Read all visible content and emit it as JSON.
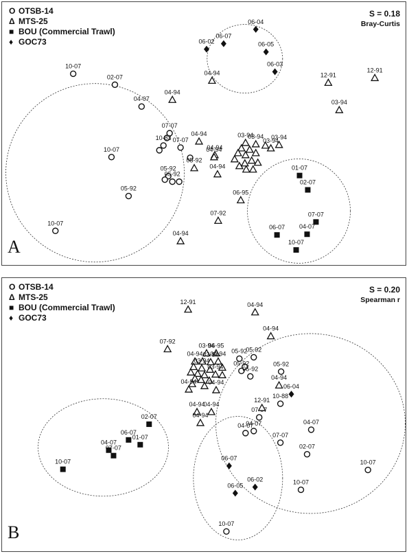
{
  "chart_data": [
    {
      "type": "scatter",
      "title": "",
      "panel_label": "A",
      "stat": "S = 0.18",
      "measure": "Bray-Curtis",
      "xlim": [
        0,
        590
      ],
      "ylim": [
        0,
        385
      ],
      "legend": [
        {
          "symbol": "O",
          "name": "OTSB-14"
        },
        {
          "symbol": "Δ",
          "name": "MTS-25"
        },
        {
          "symbol": "■",
          "name": "BOU (Commercial Trawl)"
        },
        {
          "symbol": "♦",
          "name": "GOC73"
        }
      ],
      "series": [
        {
          "name": "OTSB-14",
          "marker": "circle",
          "points": [
            {
              "x": 104,
              "y": 105,
              "label": "10-07"
            },
            {
              "x": 165,
              "y": 121,
              "label": "02-07"
            },
            {
              "x": 204,
              "y": 153,
              "label": "04-07"
            },
            {
              "x": 245,
              "y": 192,
              "label": "07-07"
            },
            {
              "x": 241,
              "y": 199,
              "label": ""
            },
            {
              "x": 236,
              "y": 210,
              "label": "10-83"
            },
            {
              "x": 230,
              "y": 217,
              "label": ""
            },
            {
              "x": 261,
              "y": 213,
              "label": "07-07"
            },
            {
              "x": 275,
              "y": 228,
              "label": ""
            },
            {
              "x": 160,
              "y": 227,
              "label": "10-07"
            },
            {
              "x": 243,
              "y": 255,
              "label": "05-92"
            },
            {
              "x": 238,
              "y": 260,
              "label": ""
            },
            {
              "x": 249,
              "y": 263,
              "label": "05-92"
            },
            {
              "x": 259,
              "y": 263,
              "label": ""
            },
            {
              "x": 185,
              "y": 284,
              "label": "05-92"
            },
            {
              "x": 78,
              "y": 335,
              "label": "10-07"
            }
          ]
        },
        {
          "name": "MTS-25",
          "marker": "triangle",
          "points": [
            {
              "x": 249,
              "y": 143,
              "label": "04-94"
            },
            {
              "x": 307,
              "y": 115,
              "label": "04-94"
            },
            {
              "x": 477,
              "y": 118,
              "label": "12-91"
            },
            {
              "x": 545,
              "y": 111,
              "label": "12-91"
            },
            {
              "x": 493,
              "y": 158,
              "label": "03-94"
            },
            {
              "x": 288,
              "y": 204,
              "label": "04-94"
            },
            {
              "x": 311,
              "y": 224,
              "label": "04-94"
            },
            {
              "x": 281,
              "y": 243,
              "label": "05-92"
            },
            {
              "x": 310,
              "y": 227,
              "label": "04-94"
            },
            {
              "x": 315,
              "y": 252,
              "label": "04-94"
            },
            {
              "x": 356,
              "y": 206,
              "label": "03-94"
            },
            {
              "x": 371,
              "y": 208,
              "label": "03-94"
            },
            {
              "x": 385,
              "y": 210,
              "label": ""
            },
            {
              "x": 405,
              "y": 209,
              "label": "03-94"
            },
            {
              "x": 350,
              "y": 214,
              "label": ""
            },
            {
              "x": 362,
              "y": 216,
              "label": ""
            },
            {
              "x": 393,
              "y": 214,
              "label": "03-94"
            },
            {
              "x": 345,
              "y": 221,
              "label": ""
            },
            {
              "x": 356,
              "y": 224,
              "label": ""
            },
            {
              "x": 371,
              "y": 221,
              "label": ""
            },
            {
              "x": 340,
              "y": 230,
              "label": ""
            },
            {
              "x": 365,
              "y": 232,
              "label": ""
            },
            {
              "x": 355,
              "y": 236,
              "label": ""
            },
            {
              "x": 374,
              "y": 235,
              "label": ""
            },
            {
              "x": 347,
              "y": 240,
              "label": ""
            },
            {
              "x": 357,
              "y": 245,
              "label": ""
            },
            {
              "x": 367,
              "y": 245,
              "label": ""
            },
            {
              "x": 349,
              "y": 290,
              "label": "06-95"
            },
            {
              "x": 316,
              "y": 320,
              "label": "07-92"
            },
            {
              "x": 261,
              "y": 350,
              "label": "04-94"
            }
          ]
        },
        {
          "name": "BOU (Commercial Trawl)",
          "marker": "square",
          "points": [
            {
              "x": 435,
              "y": 254,
              "label": "01-07"
            },
            {
              "x": 447,
              "y": 275,
              "label": "02-07"
            },
            {
              "x": 459,
              "y": 322,
              "label": "07-07"
            },
            {
              "x": 446,
              "y": 340,
              "label": "04-07"
            },
            {
              "x": 402,
              "y": 341,
              "label": "06-07"
            },
            {
              "x": 430,
              "y": 363,
              "label": "10-07"
            }
          ]
        },
        {
          "name": "GOC73",
          "marker": "diamond",
          "points": [
            {
              "x": 371,
              "y": 40,
              "label": "06-04"
            },
            {
              "x": 324,
              "y": 61,
              "label": "06-07"
            },
            {
              "x": 299,
              "y": 69,
              "label": "06-02"
            },
            {
              "x": 386,
              "y": 73,
              "label": "06-05"
            },
            {
              "x": 399,
              "y": 102,
              "label": "06-03"
            }
          ]
        }
      ],
      "ellipses": [
        {
          "cx": 136,
          "cy": 250,
          "rx": 130,
          "ry": 130
        },
        {
          "cx": 355,
          "cy": 83,
          "rx": 55,
          "ry": 50
        },
        {
          "cx": 434,
          "cy": 306,
          "rx": 75,
          "ry": 76
        }
      ]
    },
    {
      "type": "scatter",
      "title": "",
      "panel_label": "B",
      "stat": "S = 0.20",
      "measure": "Spearman r",
      "xlim": [
        0,
        590
      ],
      "ylim": [
        0,
        400
      ],
      "legend": [
        {
          "symbol": "O",
          "name": "OTSB-14"
        },
        {
          "symbol": "Δ",
          "name": "MTS-25"
        },
        {
          "symbol": "■",
          "name": "BOU (Commercial Trawl)"
        },
        {
          "symbol": "♦",
          "name": "GOC73"
        }
      ],
      "series": [
        {
          "name": "OTSB-14",
          "marker": "circle",
          "points": [
            {
              "x": 347,
              "y": 118,
              "label": "05-92"
            },
            {
              "x": 368,
              "y": 116,
              "label": "05-92"
            },
            {
              "x": 355,
              "y": 130,
              "label": ""
            },
            {
              "x": 350,
              "y": 136,
              "label": "05-92"
            },
            {
              "x": 363,
              "y": 144,
              "label": "05-92"
            },
            {
              "x": 408,
              "y": 137,
              "label": "05-92"
            },
            {
              "x": 407,
              "y": 184,
              "label": "10-88"
            },
            {
              "x": 376,
              "y": 204,
              "label": "07-07"
            },
            {
              "x": 356,
              "y": 227,
              "label": "04-07"
            },
            {
              "x": 368,
              "y": 224,
              "label": "04-07"
            },
            {
              "x": 452,
              "y": 222,
              "label": "04-07"
            },
            {
              "x": 407,
              "y": 241,
              "label": "07-07"
            },
            {
              "x": 446,
              "y": 258,
              "label": "02-07"
            },
            {
              "x": 437,
              "y": 310,
              "label": "10-07"
            },
            {
              "x": 535,
              "y": 281,
              "label": "10-07"
            },
            {
              "x": 328,
              "y": 371,
              "label": "10-07"
            }
          ]
        },
        {
          "name": "MTS-25",
          "marker": "triangle",
          "points": [
            {
              "x": 272,
              "y": 46,
              "label": "12-91"
            },
            {
              "x": 370,
              "y": 50,
              "label": "04-94"
            },
            {
              "x": 393,
              "y": 85,
              "label": "04-94"
            },
            {
              "x": 242,
              "y": 104,
              "label": "07-92"
            },
            {
              "x": 299,
              "y": 110,
              "label": "03-94"
            },
            {
              "x": 313,
              "y": 110,
              "label": "06-95"
            },
            {
              "x": 282,
              "y": 122,
              "label": "04-94"
            },
            {
              "x": 293,
              "y": 122,
              "label": ""
            },
            {
              "x": 305,
              "y": 123,
              "label": "03-94"
            },
            {
              "x": 316,
              "y": 122,
              "label": "04-94"
            },
            {
              "x": 280,
              "y": 130,
              "label": ""
            },
            {
              "x": 292,
              "y": 132,
              "label": "03-94"
            },
            {
              "x": 304,
              "y": 134,
              "label": ""
            },
            {
              "x": 322,
              "y": 131,
              "label": ""
            },
            {
              "x": 276,
              "y": 138,
              "label": ""
            },
            {
              "x": 286,
              "y": 140,
              "label": ""
            },
            {
              "x": 296,
              "y": 142,
              "label": ""
            },
            {
              "x": 312,
              "y": 141,
              "label": "03-94"
            },
            {
              "x": 322,
              "y": 142,
              "label": ""
            },
            {
              "x": 282,
              "y": 147,
              "label": ""
            },
            {
              "x": 291,
              "y": 149,
              "label": ""
            },
            {
              "x": 303,
              "y": 150,
              "label": ""
            },
            {
              "x": 278,
              "y": 155,
              "label": ""
            },
            {
              "x": 296,
              "y": 158,
              "label": ""
            },
            {
              "x": 273,
              "y": 163,
              "label": "04-94"
            },
            {
              "x": 313,
              "y": 164,
              "label": "04-94"
            },
            {
              "x": 405,
              "y": 157,
              "label": "04-94"
            },
            {
              "x": 380,
              "y": 190,
              "label": "12-91"
            },
            {
              "x": 285,
              "y": 196,
              "label": "04-94"
            },
            {
              "x": 306,
              "y": 196,
              "label": "04-94"
            },
            {
              "x": 290,
              "y": 212,
              "label": "04-94"
            }
          ]
        },
        {
          "name": "BOU (Commercial Trawl)",
          "marker": "square",
          "points": [
            {
              "x": 215,
              "y": 214,
              "label": "02-07"
            },
            {
              "x": 185,
              "y": 237,
              "label": "06-07"
            },
            {
              "x": 202,
              "y": 244,
              "label": "01-07"
            },
            {
              "x": 156,
              "y": 252,
              "label": "04-07"
            },
            {
              "x": 163,
              "y": 260,
              "label": "07-07"
            },
            {
              "x": 89,
              "y": 280,
              "label": "10-07"
            }
          ]
        },
        {
          "name": "GOC73",
          "marker": "diamond",
          "points": [
            {
              "x": 423,
              "y": 170,
              "label": "06-04"
            },
            {
              "x": 332,
              "y": 275,
              "label": "06-07"
            },
            {
              "x": 341,
              "y": 315,
              "label": "06-05"
            },
            {
              "x": 370,
              "y": 306,
              "label": "06-02"
            }
          ]
        }
      ],
      "ellipses": [
        {
          "cx": 148,
          "cy": 248,
          "rx": 95,
          "ry": 71
        },
        {
          "cx": 345,
          "cy": 293,
          "rx": 65,
          "ry": 90
        },
        {
          "cx": 451,
          "cy": 213,
          "rx": 138,
          "ry": 131
        }
      ]
    }
  ]
}
